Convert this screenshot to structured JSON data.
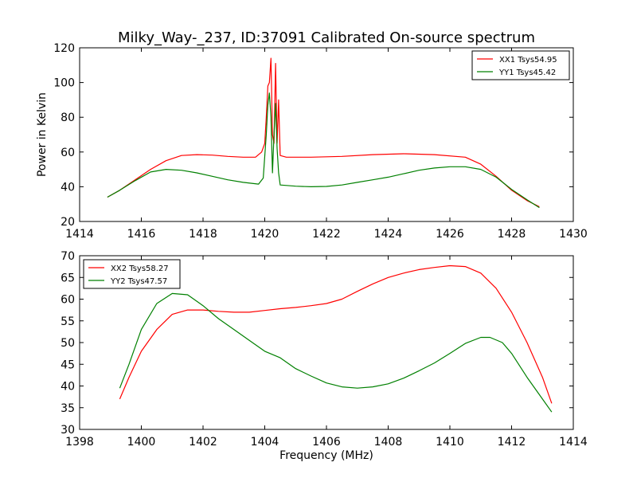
{
  "title": "Milky_Way-_237, ID:37091 Calibrated On-source spectrum",
  "chart_data": [
    {
      "type": "line",
      "xlabel": "",
      "ylabel": "Power in Kelvin",
      "xlim": [
        1414,
        1430
      ],
      "ylim": [
        20,
        120
      ],
      "xticks": [
        1414,
        1416,
        1418,
        1420,
        1422,
        1424,
        1426,
        1428,
        1430
      ],
      "yticks": [
        20,
        40,
        60,
        80,
        100,
        120
      ],
      "grid": false,
      "legend_position": "top-right",
      "series": [
        {
          "name": "XX1 Tsys54.95",
          "color": "#ff0000",
          "points": [
            [
              1414.9,
              34
            ],
            [
              1415.3,
              38
            ],
            [
              1415.8,
              44
            ],
            [
              1416.3,
              50
            ],
            [
              1416.8,
              55
            ],
            [
              1417.3,
              58
            ],
            [
              1417.8,
              58.5
            ],
            [
              1418.3,
              58.2
            ],
            [
              1418.8,
              57.5
            ],
            [
              1419.3,
              57
            ],
            [
              1419.7,
              57
            ],
            [
              1419.9,
              60
            ],
            [
              1420.0,
              65
            ],
            [
              1420.05,
              80
            ],
            [
              1420.1,
              98
            ],
            [
              1420.15,
              100
            ],
            [
              1420.2,
              114
            ],
            [
              1420.25,
              70
            ],
            [
              1420.3,
              65
            ],
            [
              1420.35,
              111
            ],
            [
              1420.4,
              65
            ],
            [
              1420.45,
              90
            ],
            [
              1420.5,
              58
            ],
            [
              1420.7,
              57
            ],
            [
              1421.5,
              57
            ],
            [
              1422.5,
              57.5
            ],
            [
              1423.5,
              58.5
            ],
            [
              1424.5,
              59
            ],
            [
              1425.5,
              58.5
            ],
            [
              1426.5,
              57
            ],
            [
              1427.0,
              53
            ],
            [
              1427.5,
              46
            ],
            [
              1428.0,
              38
            ],
            [
              1428.5,
              32
            ],
            [
              1428.9,
              28.5
            ]
          ]
        },
        {
          "name": "YY1 Tsys45.42",
          "color": "#008000",
          "points": [
            [
              1414.9,
              34
            ],
            [
              1415.3,
              38
            ],
            [
              1415.8,
              43.5
            ],
            [
              1416.3,
              48.5
            ],
            [
              1416.8,
              50
            ],
            [
              1417.3,
              49.5
            ],
            [
              1417.8,
              48
            ],
            [
              1418.3,
              46
            ],
            [
              1418.8,
              44
            ],
            [
              1419.3,
              42.5
            ],
            [
              1419.8,
              41.5
            ],
            [
              1419.95,
              45
            ],
            [
              1420.05,
              70
            ],
            [
              1420.1,
              87
            ],
            [
              1420.15,
              94
            ],
            [
              1420.2,
              80
            ],
            [
              1420.25,
              48
            ],
            [
              1420.3,
              70
            ],
            [
              1420.35,
              88
            ],
            [
              1420.4,
              62
            ],
            [
              1420.45,
              48
            ],
            [
              1420.5,
              41
            ],
            [
              1421.0,
              40.3
            ],
            [
              1421.5,
              40
            ],
            [
              1422.0,
              40.2
            ],
            [
              1422.5,
              41
            ],
            [
              1423.0,
              42.5
            ],
            [
              1423.5,
              44
            ],
            [
              1424.0,
              45.5
            ],
            [
              1424.5,
              47.5
            ],
            [
              1425.0,
              49.5
            ],
            [
              1425.5,
              50.8
            ],
            [
              1426.0,
              51.5
            ],
            [
              1426.5,
              51.5
            ],
            [
              1427.0,
              50
            ],
            [
              1427.5,
              45.5
            ],
            [
              1428.0,
              38.5
            ],
            [
              1428.5,
              32.5
            ],
            [
              1428.9,
              28
            ]
          ]
        }
      ]
    },
    {
      "type": "line",
      "xlabel": "Frequency (MHz)",
      "ylabel": "",
      "xlim": [
        1398,
        1414
      ],
      "ylim": [
        30,
        70
      ],
      "xticks": [
        1398,
        1400,
        1402,
        1404,
        1406,
        1408,
        1410,
        1412,
        1414
      ],
      "yticks": [
        30,
        35,
        40,
        45,
        50,
        55,
        60,
        65,
        70
      ],
      "grid": false,
      "legend_position": "top-left",
      "series": [
        {
          "name": "XX2 Tsys58.27",
          "color": "#ff0000",
          "points": [
            [
              1399.3,
              37
            ],
            [
              1399.6,
              42
            ],
            [
              1400.0,
              48
            ],
            [
              1400.5,
              53
            ],
            [
              1401.0,
              56.5
            ],
            [
              1401.5,
              57.5
            ],
            [
              1402.0,
              57.5
            ],
            [
              1402.5,
              57.2
            ],
            [
              1403.0,
              57
            ],
            [
              1403.5,
              57
            ],
            [
              1404.0,
              57.4
            ],
            [
              1404.5,
              57.8
            ],
            [
              1405.0,
              58.1
            ],
            [
              1405.5,
              58.5
            ],
            [
              1406.0,
              59
            ],
            [
              1406.5,
              60
            ],
            [
              1407.0,
              61.8
            ],
            [
              1407.5,
              63.5
            ],
            [
              1408.0,
              65
            ],
            [
              1408.5,
              66
            ],
            [
              1409.0,
              66.8
            ],
            [
              1409.5,
              67.3
            ],
            [
              1410.0,
              67.7
            ],
            [
              1410.5,
              67.5
            ],
            [
              1411.0,
              66
            ],
            [
              1411.5,
              62.5
            ],
            [
              1412.0,
              57
            ],
            [
              1412.5,
              50
            ],
            [
              1413.0,
              42
            ],
            [
              1413.3,
              36
            ]
          ]
        },
        {
          "name": "YY2 Tsys47.57",
          "color": "#008000",
          "points": [
            [
              1399.3,
              39.5
            ],
            [
              1399.6,
              45
            ],
            [
              1400.0,
              53
            ],
            [
              1400.5,
              59
            ],
            [
              1401.0,
              61.3
            ],
            [
              1401.5,
              61
            ],
            [
              1402.0,
              58.5
            ],
            [
              1402.5,
              55.5
            ],
            [
              1403.0,
              53
            ],
            [
              1403.5,
              50.5
            ],
            [
              1404.0,
              48
            ],
            [
              1404.5,
              46.5
            ],
            [
              1405.0,
              44
            ],
            [
              1405.5,
              42.3
            ],
            [
              1406.0,
              40.7
            ],
            [
              1406.5,
              39.8
            ],
            [
              1407.0,
              39.5
            ],
            [
              1407.5,
              39.8
            ],
            [
              1408.0,
              40.5
            ],
            [
              1408.5,
              41.8
            ],
            [
              1409.0,
              43.5
            ],
            [
              1409.5,
              45.3
            ],
            [
              1410.0,
              47.5
            ],
            [
              1410.5,
              49.8
            ],
            [
              1411.0,
              51.2
            ],
            [
              1411.3,
              51.2
            ],
            [
              1411.7,
              50
            ],
            [
              1412.0,
              47.5
            ],
            [
              1412.5,
              42
            ],
            [
              1413.0,
              37
            ],
            [
              1413.3,
              34
            ]
          ]
        }
      ]
    }
  ]
}
